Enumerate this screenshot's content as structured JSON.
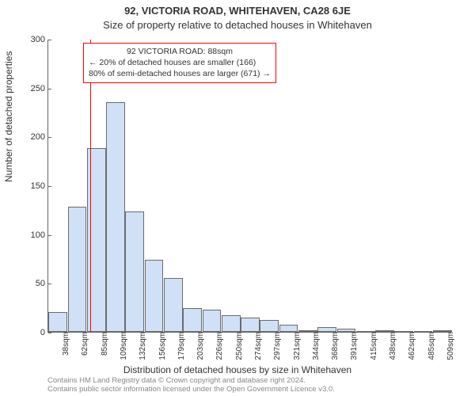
{
  "titles": {
    "line1": "92, VICTORIA ROAD, WHITEHAVEN, CA28 6JE",
    "line2": "Size of property relative to detached houses in Whitehaven"
  },
  "axes": {
    "ylabel": "Number of detached properties",
    "xlabel": "Distribution of detached houses by size in Whitehaven",
    "ylim": [
      0,
      300
    ],
    "yticks": [
      0,
      50,
      100,
      150,
      200,
      250,
      300
    ],
    "label_fontsize": 12,
    "tick_fontsize": 11
  },
  "chart": {
    "type": "histogram",
    "bar_fill": "#cfe0f7",
    "bar_stroke": "#6b6b6b",
    "bar_stroke_width": 1,
    "background_color": "#ffffff",
    "axis_color": "#666666",
    "n_bins": 21,
    "bin_width_sqm": 23,
    "bin_start_sqm": 38,
    "bin_labels": [
      "38sqm",
      "62sqm",
      "85sqm",
      "109sqm",
      "132sqm",
      "156sqm",
      "179sqm",
      "203sqm",
      "226sqm",
      "250sqm",
      "274sqm",
      "297sqm",
      "321sqm",
      "344sqm",
      "368sqm",
      "391sqm",
      "415sqm",
      "438sqm",
      "462sqm",
      "485sqm",
      "509sqm"
    ],
    "values": [
      20,
      128,
      188,
      235,
      123,
      74,
      55,
      24,
      23,
      17,
      15,
      12,
      7,
      1,
      5,
      3,
      0,
      2,
      0,
      0,
      1
    ]
  },
  "marker": {
    "value_sqm": 88,
    "color": "#ff0000"
  },
  "annotation": {
    "lines": [
      "92 VICTORIA ROAD: 88sqm",
      "← 20% of detached houses are smaller (166)",
      "80% of semi-detached houses are larger (671) →"
    ],
    "border_color": "#ff0000",
    "background": "#ffffff",
    "text_color": "#333333",
    "fontsize": 10.5
  },
  "footer": {
    "line1": "Contains HM Land Registry data © Crown copyright and database right 2024.",
    "line2": "Contains public sector information licensed under the Open Government Licence v3.0.",
    "color": "#888888"
  }
}
